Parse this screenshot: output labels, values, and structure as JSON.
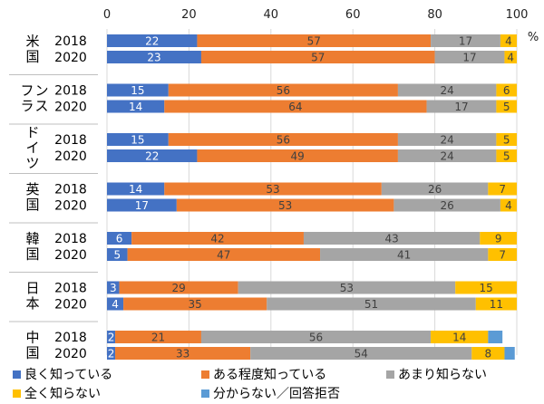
{
  "chart_data": {
    "type": "bar",
    "orientation": "horizontal",
    "stacked": true,
    "xlim": [
      0,
      100
    ],
    "xticks": [
      "0",
      "20",
      "40",
      "60",
      "80",
      "100"
    ],
    "unit": "%",
    "groups": [
      {
        "country": "米国",
        "years": [
          "2018",
          "2020"
        ]
      },
      {
        "country": "フランス",
        "years": [
          "2018",
          "2020"
        ]
      },
      {
        "country": "ドイツ",
        "years": [
          "2018",
          "2020"
        ]
      },
      {
        "country": "英国",
        "years": [
          "2018",
          "2020"
        ]
      },
      {
        "country": "韓国",
        "years": [
          "2018",
          "2020"
        ]
      },
      {
        "country": "日本",
        "years": [
          "2018",
          "2020"
        ]
      },
      {
        "country": "中国",
        "years": [
          "2018",
          "2020"
        ]
      }
    ],
    "series": [
      {
        "name": "良く知っている",
        "color": "#4472C4",
        "values": [
          22,
          23,
          15,
          14,
          15,
          22,
          14,
          17,
          6,
          5,
          3,
          4,
          2,
          2
        ]
      },
      {
        "name": "ある程度知っている",
        "color": "#ED7D31",
        "values": [
          57,
          57,
          56,
          64,
          56,
          49,
          53,
          53,
          42,
          47,
          29,
          35,
          21,
          33
        ]
      },
      {
        "name": "あまり知らない",
        "color": "#A5A5A5",
        "values": [
          17,
          17,
          24,
          17,
          24,
          24,
          26,
          26,
          43,
          41,
          53,
          51,
          56,
          54
        ]
      },
      {
        "name": "全く知らない",
        "color": "#FFC000",
        "values": [
          4,
          4,
          6,
          5,
          5,
          5,
          7,
          4,
          9,
          7,
          15,
          11,
          14,
          8
        ]
      },
      {
        "name": "分からない／回答拒否",
        "color": "#5B9BD5",
        "values": [
          0.4,
          0,
          0,
          0,
          0.5,
          0,
          0,
          0,
          0.3,
          0,
          0.3,
          0,
          3.5,
          2.5
        ]
      }
    ],
    "labeled_series": [
      0,
      1,
      2,
      3
    ],
    "grid": true,
    "legend_position": "bottom"
  }
}
